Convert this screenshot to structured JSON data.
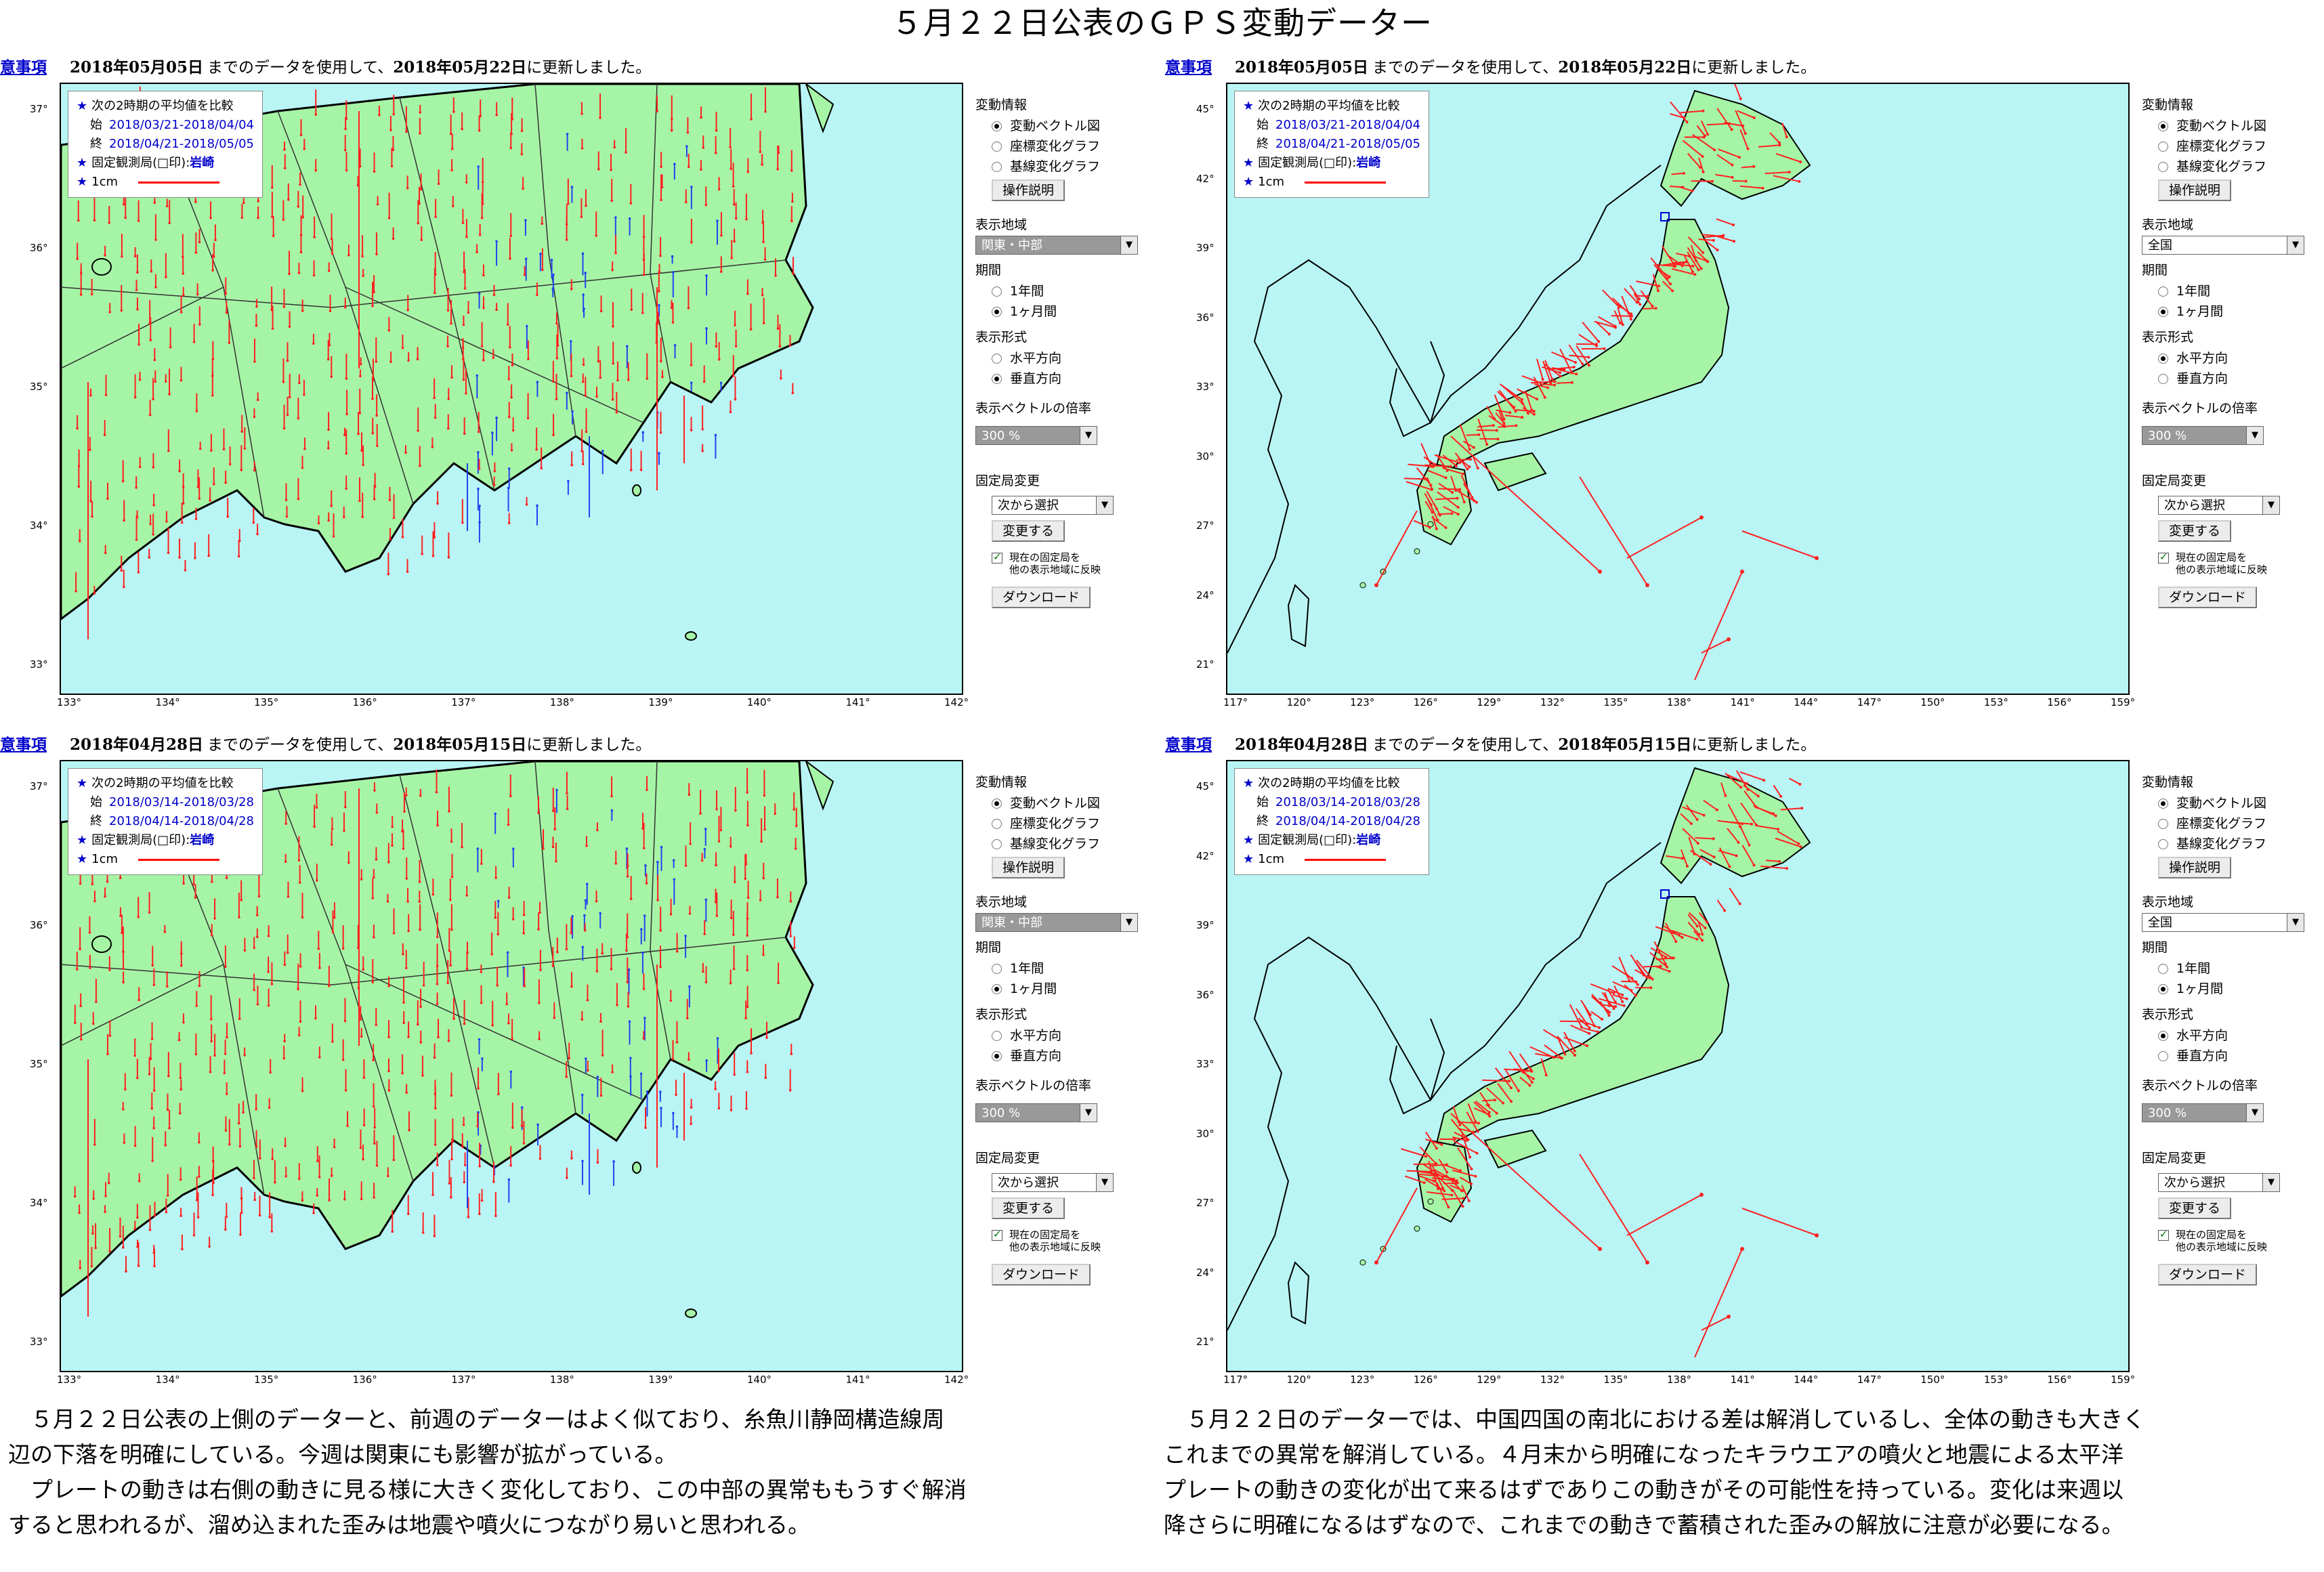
{
  "page": {
    "title": "５月２２日公表のＧＰＳ変動データー"
  },
  "panels": [
    {
      "id": "kanto-0522",
      "info": {
        "notice": "意事項",
        "date_used": "2018年05月05日",
        "text_mid": "までのデータを使用して、",
        "date_updated": "2018年05月22日",
        "text_end": "に更新しました。"
      },
      "legend": {
        "compare": "次の2時期の平均値を比較",
        "start_label": "始",
        "start_period": "2018/03/21-2018/04/04",
        "end_label": "終",
        "end_period": "2018/04/21-2018/05/05",
        "station_label": "固定観測局(□印):",
        "station": "岩崎",
        "scale": "1cm"
      },
      "x_ticks": [
        "133°",
        "134°",
        "135°",
        "136°",
        "137°",
        "138°",
        "139°",
        "140°",
        "141°",
        "142°"
      ],
      "y_ticks": [
        "37°",
        "36°",
        "35°",
        "34°",
        "33°"
      ],
      "controls": {
        "info_title": "変動情報",
        "info_options": [
          "変動ベクトル図",
          "座標変化グラフ",
          "基線変化グラフ"
        ],
        "info_selected": 0,
        "help_button": "操作説明",
        "region_title": "表示地域",
        "region_value": "関東・中部",
        "period_title": "期間",
        "period_options": [
          "1年間",
          "1ヶ月間"
        ],
        "period_selected": 1,
        "format_title": "表示形式",
        "format_options": [
          "水平方向",
          "垂直方向"
        ],
        "format_selected": 1,
        "scale_title": "表示ベクトルの倍率",
        "scale_value": "300 %",
        "station_title": "固定局変更",
        "station_select": "次から選択",
        "change_button": "変更する",
        "reflect_label_1": "現在の固定局を",
        "reflect_label_2": "他の表示地域に反映",
        "download_button": "ダウンロード"
      }
    },
    {
      "id": "japan-0522",
      "info": {
        "notice": "意事項",
        "date_used": "2018年05月05日",
        "text_mid": "までのデータを使用して、",
        "date_updated": "2018年05月22日",
        "text_end": "に更新しました。"
      },
      "legend": {
        "compare": "次の2時期の平均値を比較",
        "start_label": "始",
        "start_period": "2018/03/21-2018/04/04",
        "end_label": "終",
        "end_period": "2018/04/21-2018/05/05",
        "station_label": "固定観測局(□印):",
        "station": "岩崎",
        "scale": "1cm"
      },
      "x_ticks": [
        "117°",
        "120°",
        "123°",
        "126°",
        "129°",
        "132°",
        "135°",
        "138°",
        "141°",
        "144°",
        "147°",
        "150°",
        "153°",
        "156°",
        "159°"
      ],
      "y_ticks": [
        "45°",
        "42°",
        "39°",
        "36°",
        "33°",
        "30°",
        "27°",
        "24°",
        "21°"
      ],
      "controls": {
        "info_title": "変動情報",
        "info_options": [
          "変動ベクトル図",
          "座標変化グラフ",
          "基線変化グラフ"
        ],
        "info_selected": 0,
        "help_button": "操作説明",
        "region_title": "表示地域",
        "region_value": "全国",
        "period_title": "期間",
        "period_options": [
          "1年間",
          "1ヶ月間"
        ],
        "period_selected": 1,
        "format_title": "表示形式",
        "format_options": [
          "水平方向",
          "垂直方向"
        ],
        "format_selected": 0,
        "scale_title": "表示ベクトルの倍率",
        "scale_value": "300 %",
        "station_title": "固定局変更",
        "station_select": "次から選択",
        "change_button": "変更する",
        "reflect_label_1": "現在の固定局を",
        "reflect_label_2": "他の表示地域に反映",
        "download_button": "ダウンロード"
      }
    },
    {
      "id": "kanto-0515",
      "info": {
        "notice": "意事項",
        "date_used": "2018年04月28日",
        "text_mid": "までのデータを使用して、",
        "date_updated": "2018年05月15日",
        "text_end": "に更新しました。"
      },
      "legend": {
        "compare": "次の2時期の平均値を比較",
        "start_label": "始",
        "start_period": "2018/03/14-2018/03/28",
        "end_label": "終",
        "end_period": "2018/04/14-2018/04/28",
        "station_label": "固定観測局(□印):",
        "station": "岩崎",
        "scale": "1cm"
      },
      "x_ticks": [
        "133°",
        "134°",
        "135°",
        "136°",
        "137°",
        "138°",
        "139°",
        "140°",
        "141°",
        "142°"
      ],
      "y_ticks": [
        "37°",
        "36°",
        "35°",
        "34°",
        "33°"
      ],
      "controls": {
        "info_title": "変動情報",
        "info_options": [
          "変動ベクトル図",
          "座標変化グラフ",
          "基線変化グラフ"
        ],
        "info_selected": 0,
        "help_button": "操作説明",
        "region_title": "表示地域",
        "region_value": "関東・中部",
        "period_title": "期間",
        "period_options": [
          "1年間",
          "1ヶ月間"
        ],
        "period_selected": 1,
        "format_title": "表示形式",
        "format_options": [
          "水平方向",
          "垂直方向"
        ],
        "format_selected": 1,
        "scale_title": "表示ベクトルの倍率",
        "scale_value": "300 %",
        "station_title": "固定局変更",
        "station_select": "次から選択",
        "change_button": "変更する",
        "reflect_label_1": "現在の固定局を",
        "reflect_label_2": "他の表示地域に反映",
        "download_button": "ダウンロード"
      }
    },
    {
      "id": "japan-0515",
      "info": {
        "notice": "意事項",
        "date_used": "2018年04月28日",
        "text_mid": "までのデータを使用して、",
        "date_updated": "2018年05月15日",
        "text_end": "に更新しました。"
      },
      "legend": {
        "compare": "次の2時期の平均値を比較",
        "start_label": "始",
        "start_period": "2018/03/14-2018/03/28",
        "end_label": "終",
        "end_period": "2018/04/14-2018/04/28",
        "station_label": "固定観測局(□印):",
        "station": "岩崎",
        "scale": "1cm"
      },
      "x_ticks": [
        "117°",
        "120°",
        "123°",
        "126°",
        "129°",
        "132°",
        "135°",
        "138°",
        "141°",
        "144°",
        "147°",
        "150°",
        "153°",
        "156°",
        "159°"
      ],
      "y_ticks": [
        "45°",
        "42°",
        "39°",
        "36°",
        "33°",
        "30°",
        "27°",
        "24°",
        "21°"
      ],
      "controls": {
        "info_title": "変動情報",
        "info_options": [
          "変動ベクトル図",
          "座標変化グラフ",
          "基線変化グラフ"
        ],
        "info_selected": 0,
        "help_button": "操作説明",
        "region_title": "表示地域",
        "region_value": "全国",
        "period_title": "期間",
        "period_options": [
          "1年間",
          "1ヶ月間"
        ],
        "period_selected": 1,
        "format_title": "表示形式",
        "format_options": [
          "水平方向",
          "垂直方向"
        ],
        "format_selected": 0,
        "scale_title": "表示ベクトルの倍率",
        "scale_value": "300 %",
        "station_title": "固定局変更",
        "station_select": "次から選択",
        "change_button": "変更する",
        "reflect_label_1": "現在の固定局を",
        "reflect_label_2": "他の表示地域に反映",
        "download_button": "ダウンロード"
      }
    }
  ],
  "comments": {
    "left": [
      "　５月２２日公表の上側のデーターと、前週のデーターはよく似ており、糸魚川静岡構造線周",
      "辺の下落を明確にしている。今週は関東にも影響が拡がっている。",
      "　プレートの動きは右側の動きに見る様に大きく変化しており、この中部の異常ももうすぐ解消",
      "すると思われるが、溜め込まれた歪みは地震や噴火につながり易いと思われる。"
    ],
    "right": [
      "　５月２２日のデーターでは、中国四国の南北における差は解消しているし、全体の動きも大きく",
      "これまでの異常を解消している。４月末から明確になったキラウエアの噴火と地震による太平洋",
      "プレートの動きの変化が出て来るはずでありこの動きがその可能性を持っている。変化は来週以",
      "降さらに明確になるはずなので、これまでの動きで蓄積された歪みの解放に注意が必要になる。"
    ]
  },
  "colors": {
    "sea": "#b9f5f5",
    "land": "#a6f5a6",
    "vector_up": "#ff2020",
    "vector_down": "#2244ee",
    "link": "#0000cc"
  }
}
